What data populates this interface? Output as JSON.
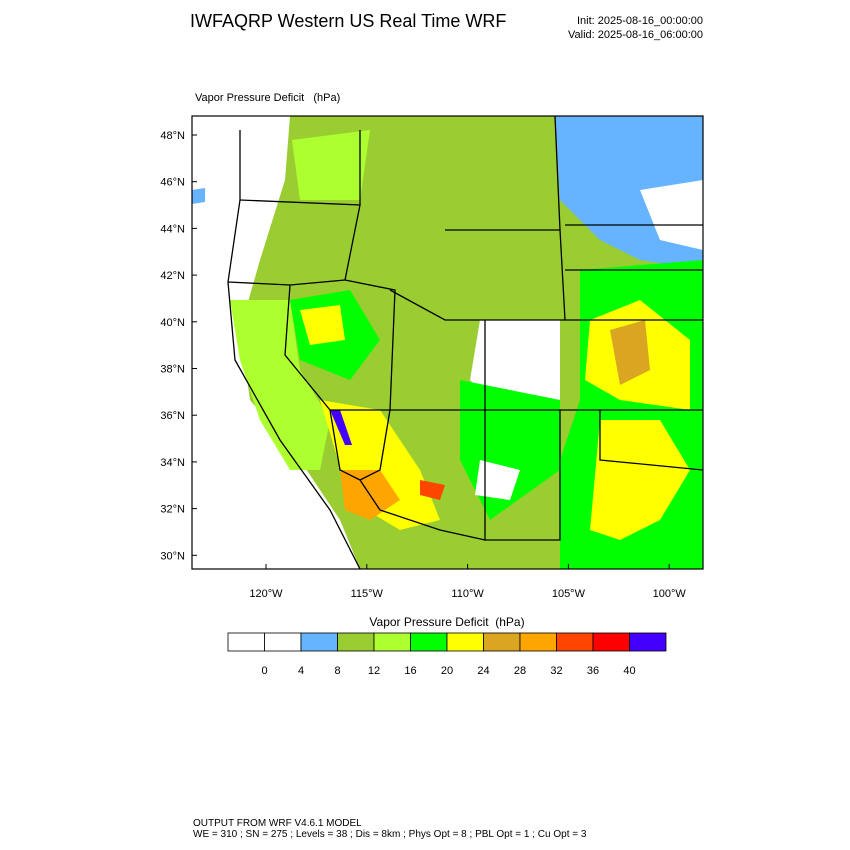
{
  "header": {
    "title": "IWFAQRP Western US Real Time WRF",
    "init": "Init: 2025-08-16_00:00:00",
    "valid": "Valid: 2025-08-16_06:00:00"
  },
  "map": {
    "field_label": "Vapor Pressure Deficit   (hPa)",
    "lat_labels": [
      "48°N",
      "46°N",
      "44°N",
      "42°N",
      "40°N",
      "38°N",
      "36°N",
      "34°N",
      "32°N",
      "30°N"
    ],
    "lon_labels": [
      "120°W",
      "115°W",
      "110°W",
      "105°W",
      "100°W"
    ]
  },
  "colorbar": {
    "title": "Vapor Pressure Deficit  (hPa)",
    "labels": [
      "0",
      "4",
      "8",
      "12",
      "16",
      "20",
      "24",
      "28",
      "32",
      "36",
      "40"
    ],
    "colors": [
      "#ffffff",
      "#ffffff",
      "#66b3ff",
      "#9acd32",
      "#adff2f",
      "#00ff00",
      "#ffff00",
      "#daa520",
      "#ffa500",
      "#ff4500",
      "#ff0000",
      "#4400ff"
    ]
  },
  "footer": {
    "line1": "OUTPUT FROM WRF V4.6.1 MODEL",
    "line2": "WE = 310 ; SN = 275 ; Levels = 38 ; Dis = 8km ; Phys Opt = 8 ; PBL Opt = 1 ; Cu Opt = 3"
  }
}
